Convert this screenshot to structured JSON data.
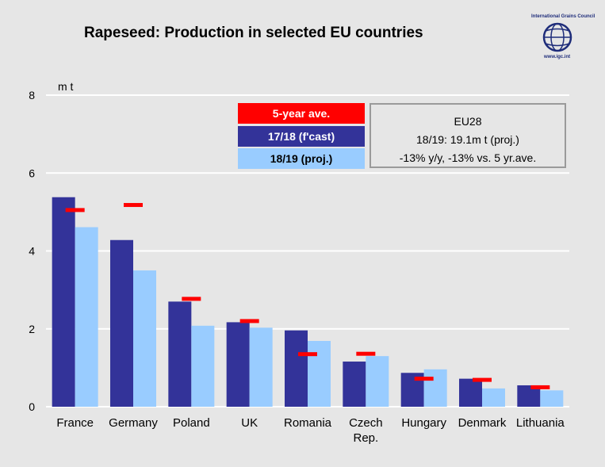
{
  "title": "Rapeseed: Production in selected EU countries",
  "logo": {
    "org": "International Grains Council",
    "url": "www.igc.int"
  },
  "infobox": {
    "line1": "EU28",
    "line2": "18/19: 19.1m t (proj.)",
    "line3": "-13% y/y, -13% vs. 5 yr.ave."
  },
  "colors": {
    "five_year": "#ff0000",
    "s1718": "#333399",
    "s1819": "#99ccff",
    "background": "#e6e6e6",
    "grid": "#ffffff"
  },
  "chart_data": {
    "type": "bar",
    "title": "Rapeseed: Production in selected EU countries",
    "ylabel": "m t",
    "xlabel": "",
    "ylim": [
      0,
      8
    ],
    "yticks": [
      0,
      2,
      4,
      6,
      8
    ],
    "grid": true,
    "legend_position": "top-center",
    "categories": [
      "France",
      "Germany",
      "Poland",
      "UK",
      "Romania",
      "Czech Rep.",
      "Hungary",
      "Denmark",
      "Lithuania"
    ],
    "category_lines": [
      [
        "France"
      ],
      [
        "Germany"
      ],
      [
        "Poland"
      ],
      [
        "UK"
      ],
      [
        "Romania"
      ],
      [
        "Czech",
        "Rep."
      ],
      [
        "Hungary"
      ],
      [
        "Denmark"
      ],
      [
        "Lithuania"
      ]
    ],
    "series": [
      {
        "name": "17/18 (f'cast)",
        "kind": "bar",
        "values": [
          5.38,
          4.28,
          2.7,
          2.17,
          1.96,
          1.16,
          0.87,
          0.72,
          0.55
        ]
      },
      {
        "name": "18/19 (proj.)",
        "kind": "bar",
        "values": [
          4.61,
          3.5,
          2.08,
          2.03,
          1.69,
          1.3,
          0.96,
          0.47,
          0.42
        ]
      },
      {
        "name": "5-year ave.",
        "kind": "marker",
        "values": [
          5.05,
          5.18,
          2.77,
          2.2,
          1.35,
          1.36,
          0.72,
          0.69,
          0.5
        ]
      }
    ]
  }
}
